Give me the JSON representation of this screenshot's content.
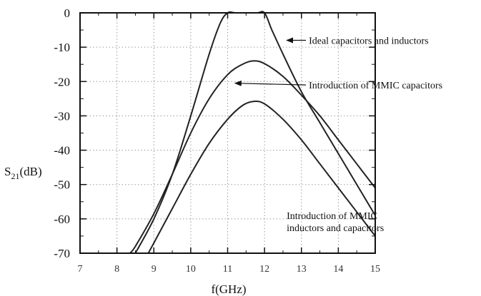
{
  "chart_data": {
    "type": "line",
    "xlabel": "f(GHz)",
    "ylabel": "S21(dB)",
    "ylabel_parts": {
      "main": "S",
      "sub": "21",
      "rest": "(dB)"
    },
    "xlim": [
      7,
      15
    ],
    "ylim": [
      -70,
      0
    ],
    "x_ticks": [
      7,
      8,
      9,
      10,
      11,
      12,
      13,
      14,
      15
    ],
    "y_ticks": [
      0,
      -10,
      -20,
      -30,
      -40,
      -50,
      -60,
      -70
    ],
    "y_tick_labels": [
      "0",
      "-10",
      "-20",
      "-30",
      "-40",
      "-50",
      "-60",
      "-70"
    ],
    "grid": true,
    "series": [
      {
        "name": "Ideal capacitors and inductors",
        "color": "#222222",
        "x": [
          8.5,
          9.0,
          9.5,
          10.0,
          10.5,
          10.8,
          11.0,
          11.2,
          11.5,
          11.8,
          12.0,
          12.2,
          12.5,
          13.0,
          13.5,
          14.0,
          14.5,
          15.0
        ],
        "y": [
          -70,
          -60,
          -47,
          -30,
          -12,
          -3,
          0,
          0,
          0,
          0,
          0,
          -5,
          -12,
          -23,
          -32,
          -41,
          -50,
          -59
        ]
      },
      {
        "name": "Introduction of MMIC capacitors",
        "color": "#222222",
        "x": [
          8.35,
          8.5,
          9.0,
          9.5,
          10.0,
          10.5,
          11.0,
          11.4,
          11.7,
          12.0,
          12.5,
          13.0,
          13.5,
          14.0,
          14.5,
          15.0
        ],
        "y": [
          -70,
          -68,
          -58.5,
          -47,
          -35,
          -25,
          -18,
          -15,
          -14,
          -14.8,
          -18.5,
          -24,
          -30,
          -37,
          -44,
          -51
        ]
      },
      {
        "name": "Introduction of MMIC inductors and capacitors",
        "color": "#222222",
        "x": [
          8.85,
          9.0,
          9.5,
          10.0,
          10.5,
          11.0,
          11.4,
          11.7,
          12.0,
          12.5,
          13.0,
          13.5,
          14.0,
          14.5,
          15.0
        ],
        "y": [
          -70,
          -67,
          -57,
          -47,
          -38,
          -31,
          -27,
          -25.8,
          -26.5,
          -31,
          -37,
          -44,
          -51,
          -58,
          -65
        ]
      }
    ],
    "annotations": [
      {
        "text": "Ideal capacitors and inductors",
        "arrow_to": [
          12.6,
          -8
        ],
        "label_at": [
          13.2,
          -8
        ]
      },
      {
        "text": "Introduction of MMIC capacitors",
        "arrow_to": [
          11.2,
          -20.5
        ],
        "label_at": [
          13.2,
          -21
        ]
      },
      {
        "text": "Introduction of MMIC",
        "line2": "inductors and capacitors",
        "label_at": [
          12.6,
          -59
        ]
      }
    ]
  }
}
